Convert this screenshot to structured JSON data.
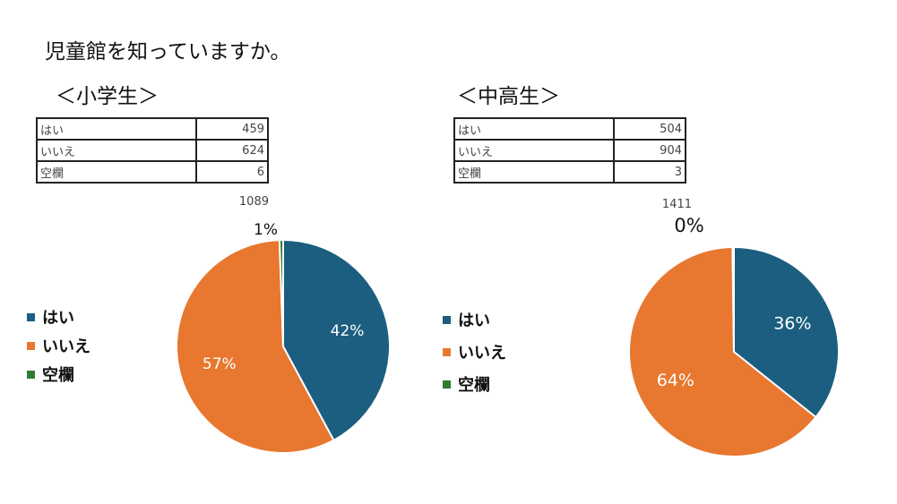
{
  "title": "児童館を知っていますか。",
  "colors": {
    "yes": "#1b5e80",
    "no": "#e8772f",
    "blank": "#2e7d32"
  },
  "legend_labels": [
    "はい",
    "いいえ",
    "空欄"
  ],
  "chart_data": [
    {
      "type": "pie",
      "title": "＜小学生＞",
      "categories": [
        "はい",
        "いいえ",
        "空欄"
      ],
      "values": [
        459,
        624,
        6
      ],
      "total": 1089,
      "percent_labels": [
        "42%",
        "57%",
        "1%"
      ]
    },
    {
      "type": "pie",
      "title": "＜中高生＞",
      "categories": [
        "はい",
        "いいえ",
        "空欄"
      ],
      "values": [
        504,
        904,
        3
      ],
      "total": 1411,
      "percent_labels": [
        "36%",
        "64%",
        "0%"
      ]
    }
  ]
}
